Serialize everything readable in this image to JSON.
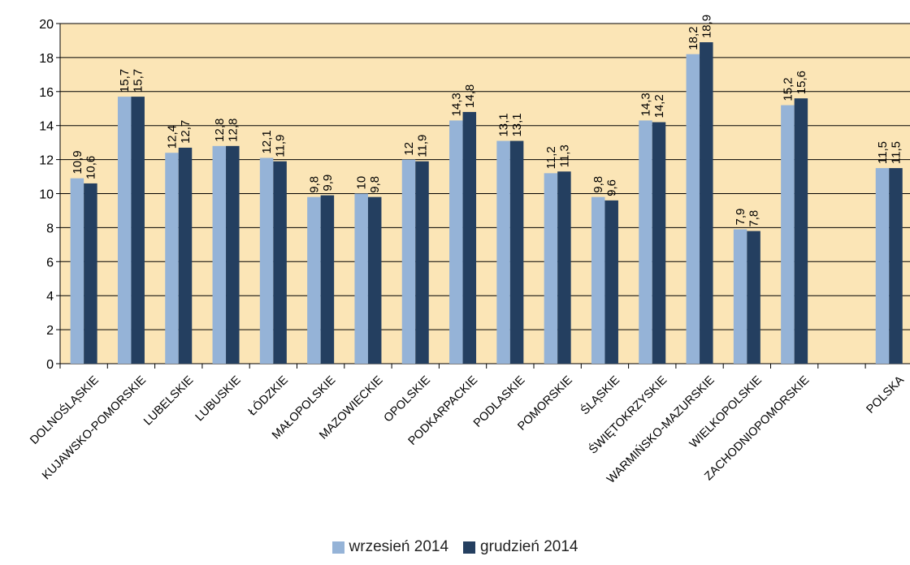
{
  "chart_data": {
    "type": "bar",
    "categories": [
      "DOLNOŚLĄSKIE",
      "KUJAWSKO-POMORSKIE",
      "LUBELSKIE",
      "LUBUSKIE",
      "ŁÓDZKIE",
      "MAŁOPOLSKIE",
      "MAZOWIECKIE",
      "OPOLSKIE",
      "PODKARPACKIE",
      "PODLASKIE",
      "POMORSKIE",
      "ŚLĄSKIE",
      "ŚWIĘTOKRZYSKIE",
      "WARMIŃSKO-MAZURSKIE",
      "WIELKOPOLSKIE",
      "ZACHODNIOPOMORSKIE",
      "",
      "POLSKA"
    ],
    "series": [
      {
        "name": "wrzesień 2014",
        "color": "#95b3d7",
        "values": [
          10.9,
          15.7,
          12.4,
          12.8,
          12.1,
          9.8,
          10,
          12,
          14.3,
          13.1,
          11.2,
          9.8,
          14.3,
          18.2,
          7.9,
          15.2,
          null,
          11.5
        ],
        "labels": [
          "10,9",
          "15,7",
          "12,4",
          "12,8",
          "12,1",
          "9,8",
          "10",
          "12",
          "14,3",
          "13,1",
          "11,2",
          "9,8",
          "14,3",
          "18,2",
          "7,9",
          "15,2",
          "",
          "11,5"
        ]
      },
      {
        "name": "grudzień 2014",
        "color": "#243f60",
        "values": [
          10.6,
          15.7,
          12.7,
          12.8,
          11.9,
          9.9,
          9.8,
          11.9,
          14.8,
          13.1,
          11.3,
          9.6,
          14.2,
          18.9,
          7.8,
          15.6,
          null,
          11.5
        ],
        "labels": [
          "10,6",
          "15,7",
          "12,7",
          "12,8",
          "11,9",
          "9,9",
          "9,8",
          "11,9",
          "14,8",
          "13,1",
          "11,3",
          "9,6",
          "14,2",
          "18,9",
          "7,8",
          "15,6",
          "",
          "11,5"
        ]
      }
    ],
    "ylim": [
      0,
      20
    ],
    "yticks": [
      0,
      2,
      4,
      6,
      8,
      10,
      12,
      14,
      16,
      18,
      20
    ],
    "plot_background": "#fbe5b6",
    "gridlines": true,
    "legend_position": "bottom"
  }
}
